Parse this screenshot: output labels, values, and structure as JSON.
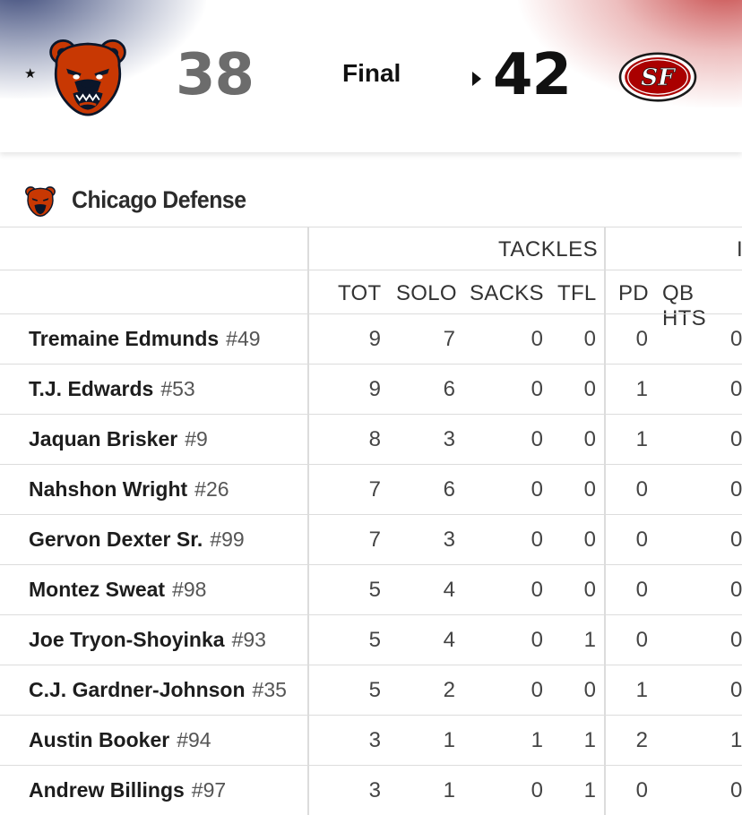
{
  "game": {
    "away": {
      "score": "38",
      "logo": "chicago-bears-logo",
      "possession_marker": "★"
    },
    "home": {
      "score": "42",
      "logo": "san-francisco-49ers-logo"
    },
    "status": "Final"
  },
  "section": {
    "title": "Chicago Defense",
    "logo": "chicago-bears-logo"
  },
  "table": {
    "groups": [
      "TACKLES",
      "I"
    ],
    "columns": [
      "TOT",
      "SOLO",
      "SACKS",
      "TFL",
      "PD",
      "QB HTS"
    ],
    "rows": [
      {
        "name": "Tremaine Edmunds",
        "number": "#49",
        "tot": "9",
        "solo": "7",
        "sacks": "0",
        "tfl": "0",
        "pd": "0",
        "qb_hts": "0"
      },
      {
        "name": "T.J. Edwards",
        "number": "#53",
        "tot": "9",
        "solo": "6",
        "sacks": "0",
        "tfl": "0",
        "pd": "1",
        "qb_hts": "0"
      },
      {
        "name": "Jaquan Brisker",
        "number": "#9",
        "tot": "8",
        "solo": "3",
        "sacks": "0",
        "tfl": "0",
        "pd": "1",
        "qb_hts": "0"
      },
      {
        "name": "Nahshon Wright",
        "number": "#26",
        "tot": "7",
        "solo": "6",
        "sacks": "0",
        "tfl": "0",
        "pd": "0",
        "qb_hts": "0"
      },
      {
        "name": "Gervon Dexter Sr.",
        "number": "#99",
        "tot": "7",
        "solo": "3",
        "sacks": "0",
        "tfl": "0",
        "pd": "0",
        "qb_hts": "0"
      },
      {
        "name": "Montez Sweat",
        "number": "#98",
        "tot": "5",
        "solo": "4",
        "sacks": "0",
        "tfl": "0",
        "pd": "0",
        "qb_hts": "0"
      },
      {
        "name": "Joe Tryon-Shoyinka",
        "number": "#93",
        "tot": "5",
        "solo": "4",
        "sacks": "0",
        "tfl": "1",
        "pd": "0",
        "qb_hts": "0"
      },
      {
        "name": "C.J. Gardner-Johnson",
        "number": "#35",
        "tot": "5",
        "solo": "2",
        "sacks": "0",
        "tfl": "0",
        "pd": "1",
        "qb_hts": "0"
      },
      {
        "name": "Austin Booker",
        "number": "#94",
        "tot": "3",
        "solo": "1",
        "sacks": "1",
        "tfl": "1",
        "pd": "2",
        "qb_hts": "1"
      },
      {
        "name": "Andrew Billings",
        "number": "#97",
        "tot": "3",
        "solo": "1",
        "sacks": "0",
        "tfl": "1",
        "pd": "0",
        "qb_hts": "0"
      }
    ]
  },
  "colors": {
    "bears_orange": "#c83803",
    "bears_navy": "#0b162a",
    "niners_red": "#aa0000",
    "niners_gold": "#b3995d"
  }
}
